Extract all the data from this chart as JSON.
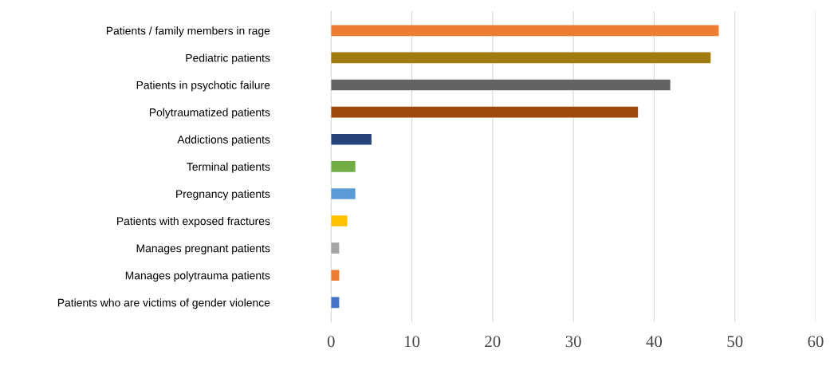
{
  "chart_data": {
    "type": "bar",
    "orientation": "horizontal",
    "categories": [
      "Patients / family members in rage",
      "Pediatric patients",
      "Patients in psychotic failure",
      "Polytraumatized patients",
      "Addictions patients",
      "Terminal patients",
      "Pregnancy patients",
      "Patients with exposed fractures",
      "Manages pregnant patients",
      "Manages polytrauma patients",
      "Patients who are victims of gender violence"
    ],
    "values": [
      48,
      47,
      42,
      38,
      5,
      3,
      3,
      2,
      1,
      1,
      1
    ],
    "colors": [
      "#ed7d31",
      "#a07c10",
      "#636363",
      "#9e480e",
      "#264478",
      "#70ad47",
      "#5b9bd5",
      "#ffc000",
      "#a5a5a5",
      "#ed7d31",
      "#4472c4"
    ],
    "xlim": [
      0,
      60
    ],
    "xticks": [
      0,
      10,
      20,
      30,
      40,
      50,
      60
    ],
    "grid": "x"
  }
}
